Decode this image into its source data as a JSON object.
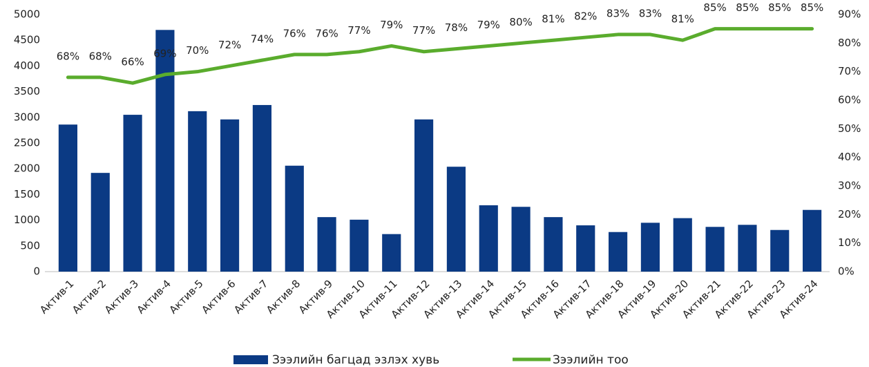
{
  "chart_data": {
    "type": "bar_line",
    "categories": [
      "Актив-1",
      "Актив-2",
      "Актив-3",
      "Актив-4",
      "Актив-5",
      "Актив-6",
      "Актив-7",
      "Актив-8",
      "Актив-9",
      "Актив-10",
      "Актив-11",
      "Актив-12",
      "Актив-13",
      "Актив-14",
      "Актив-15",
      "Актив-16",
      "Актив-17",
      "Актив-18",
      "Актив-19",
      "Актив-20",
      "Актив-21",
      "Актив-22",
      "Актив-23",
      "Актив-24"
    ],
    "series": [
      {
        "name": "Зээлийн багцад эзлэх хувь",
        "type": "bar",
        "color": "#0b3a84",
        "values": [
          2860,
          1920,
          3050,
          4700,
          3120,
          2960,
          3240,
          2060,
          1060,
          1010,
          730,
          2960,
          2040,
          1290,
          1260,
          1060,
          900,
          770,
          950,
          1040,
          870,
          910,
          810,
          1200
        ]
      },
      {
        "name": "Зээлийн тоо",
        "type": "line",
        "axis": "y2",
        "color": "#5aac2d",
        "values": [
          68,
          68,
          66,
          69,
          70,
          72,
          74,
          76,
          76,
          77,
          79,
          77,
          78,
          79,
          80,
          81,
          82,
          83,
          83,
          81,
          85,
          85,
          85,
          85
        ],
        "value_labels": [
          "68%",
          "68%",
          "66%",
          "69%",
          "70%",
          "72%",
          "74%",
          "76%",
          "76%",
          "77%",
          "79%",
          "77%",
          "78%",
          "79%",
          "80%",
          "81%",
          "82%",
          "83%",
          "83%",
          "81%",
          "85%",
          "85%",
          "85%",
          "85%"
        ]
      }
    ],
    "ylim": [
      0,
      5000
    ],
    "yticks": [
      0,
      500,
      1000,
      1500,
      2000,
      2500,
      3000,
      3500,
      4000,
      4500,
      5000
    ],
    "y2lim": [
      0,
      90
    ],
    "y2ticks": [
      {
        "value": 0,
        "label": "0%"
      },
      {
        "value": 10,
        "label": "10%"
      },
      {
        "value": 20,
        "label": "20%"
      },
      {
        "value": 30,
        "label": "30%"
      },
      {
        "value": 40,
        "label": "40%"
      },
      {
        "value": 50,
        "label": "50%"
      },
      {
        "value": 60,
        "label": "60%"
      },
      {
        "value": 70,
        "label": "70%"
      },
      {
        "value": 80,
        "label": "80%"
      },
      {
        "value": 90,
        "label": "90%"
      }
    ],
    "grid": false,
    "legend": "bottom"
  }
}
